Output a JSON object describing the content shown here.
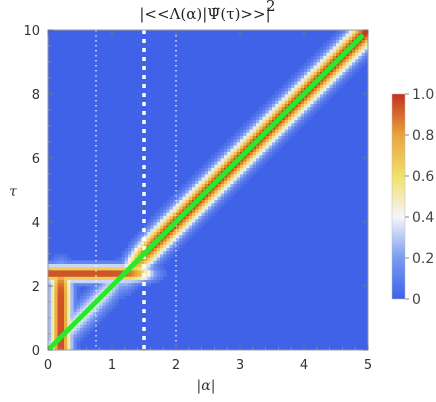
{
  "chart_data": {
    "type": "heatmap",
    "title": "|<<Λ(α)|Ψ̃(τ)>>|",
    "title_exponent": "2",
    "xlabel": "|α|",
    "ylabel": "τ",
    "xlim": [
      0,
      5
    ],
    "ylim": [
      0,
      10
    ],
    "x_ticks": [
      "0",
      "1",
      "2",
      "3",
      "4",
      "5"
    ],
    "y_ticks": [
      "0",
      "2",
      "4",
      "6",
      "8",
      "10"
    ],
    "colorbar": {
      "range": [
        0,
        1
      ],
      "ticks": [
        "0",
        "0.2",
        "0.4",
        "0.6",
        "0.8",
        "1.0"
      ],
      "colors": [
        "#3f62e8",
        "#7a9bf0",
        "#f4f6fa",
        "#f2e06a",
        "#e9a43a",
        "#c4301f"
      ]
    },
    "features": {
      "diagonal_ridge": {
        "from": [
          0,
          0
        ],
        "to": [
          5,
          10
        ],
        "slope": 2
      },
      "horizontal_plateau": {
        "tau": 2.4,
        "alpha_from": 0,
        "alpha_to": 1.5
      },
      "vertical_band": {
        "alpha": 0.2,
        "tau_from": 0,
        "tau_to": 2.4
      }
    },
    "overlay_line": {
      "color": "#2ce82c",
      "from": [
        0,
        0
      ],
      "to": [
        4.9,
        9.8
      ]
    },
    "reference_lines": [
      {
        "alpha": 0.75,
        "style": "dotted"
      },
      {
        "alpha": 1.5,
        "style": "thick-dotted"
      },
      {
        "alpha": 2.0,
        "style": "dotted"
      }
    ]
  }
}
